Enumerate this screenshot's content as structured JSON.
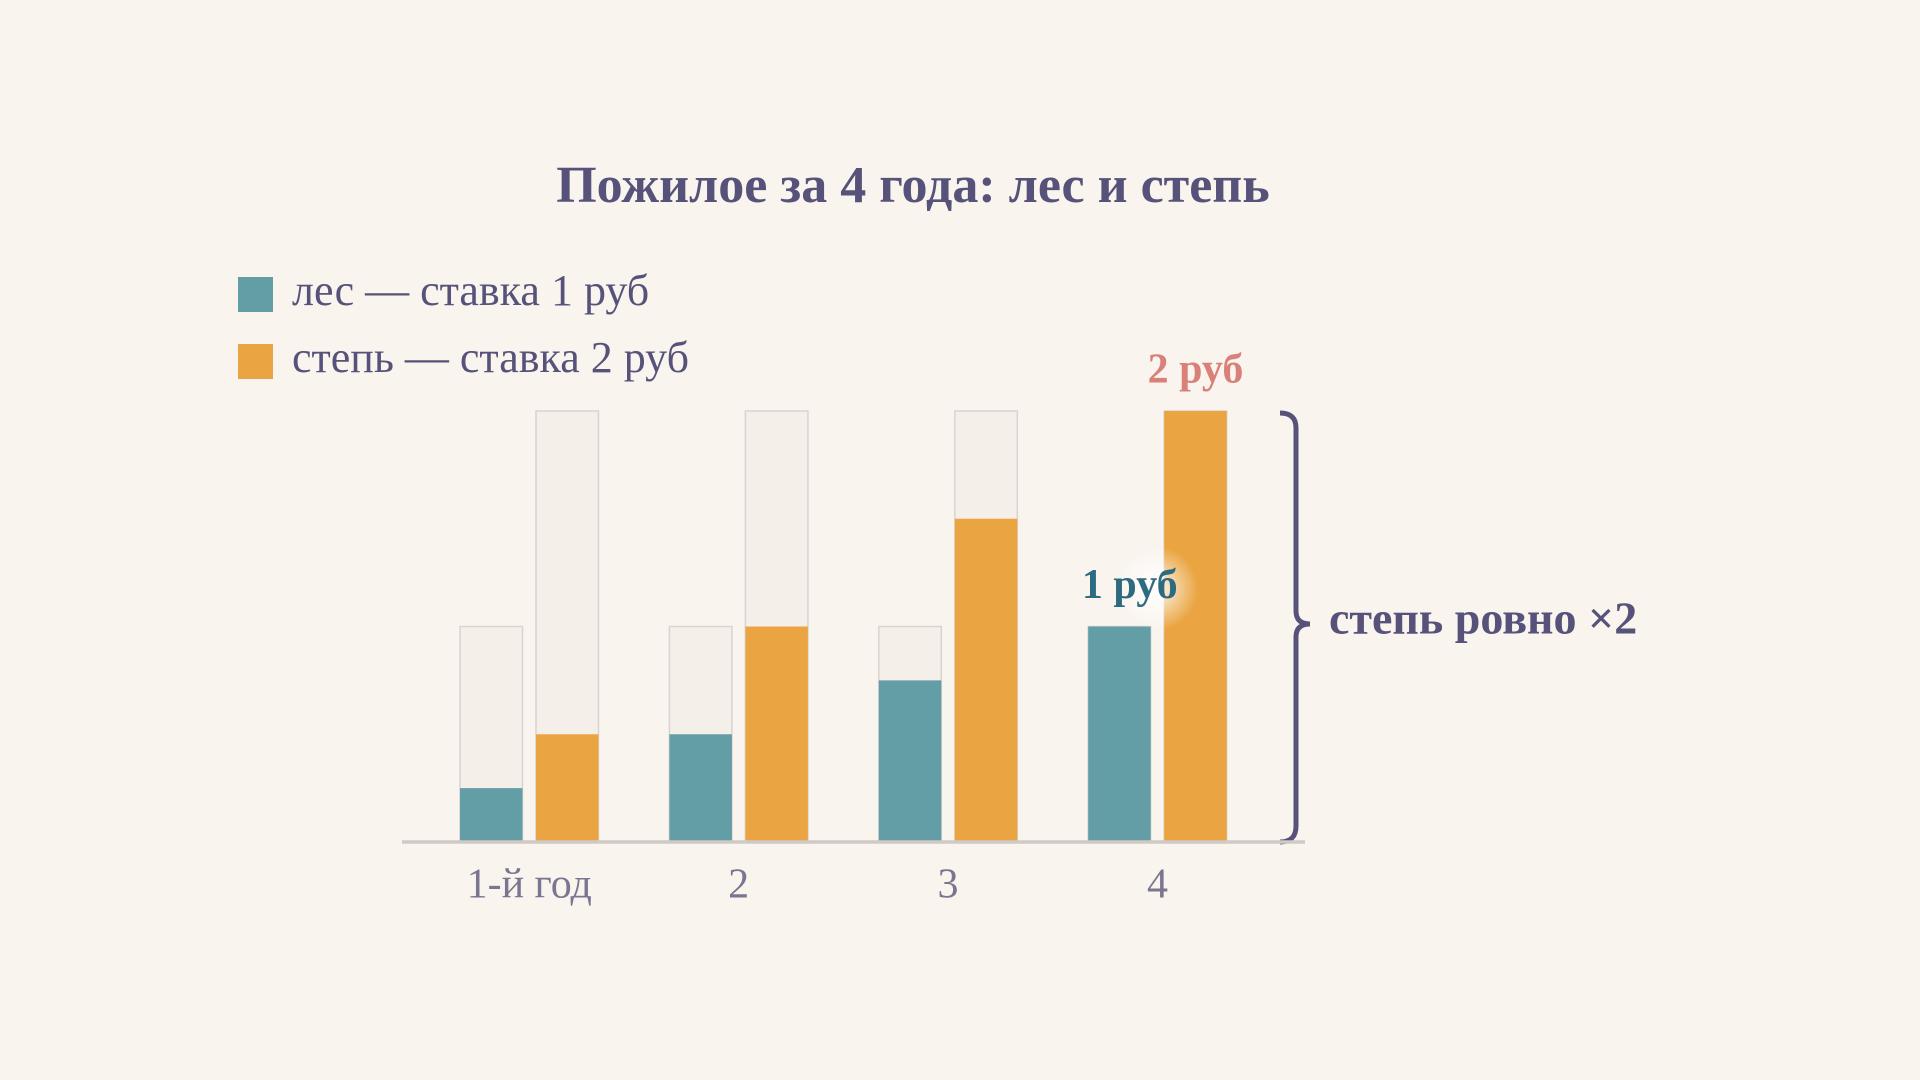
{
  "chart_data": {
    "type": "bar",
    "title": "Пожилое за 4 года: лес и степь",
    "categories": [
      "1-й год",
      "2",
      "3",
      "4"
    ],
    "series": [
      {
        "name": "лес — ставка 1 руб",
        "color": "#639da6",
        "label_color": "#2e6b80",
        "capacity": 1,
        "values": [
          0.25,
          0.5,
          0.75,
          1
        ],
        "value_labels": [
          null,
          null,
          null,
          "1 руб"
        ]
      },
      {
        "name": "степь — ставка 2 руб",
        "color": "#eaa542",
        "label_color": "#d98078",
        "capacity": 2,
        "values": [
          0.5,
          1,
          1.5,
          2
        ],
        "value_labels": [
          null,
          null,
          null,
          "2 руб"
        ]
      }
    ],
    "ylim": [
      0,
      2
    ],
    "annotation": "степь ровно ×2"
  }
}
